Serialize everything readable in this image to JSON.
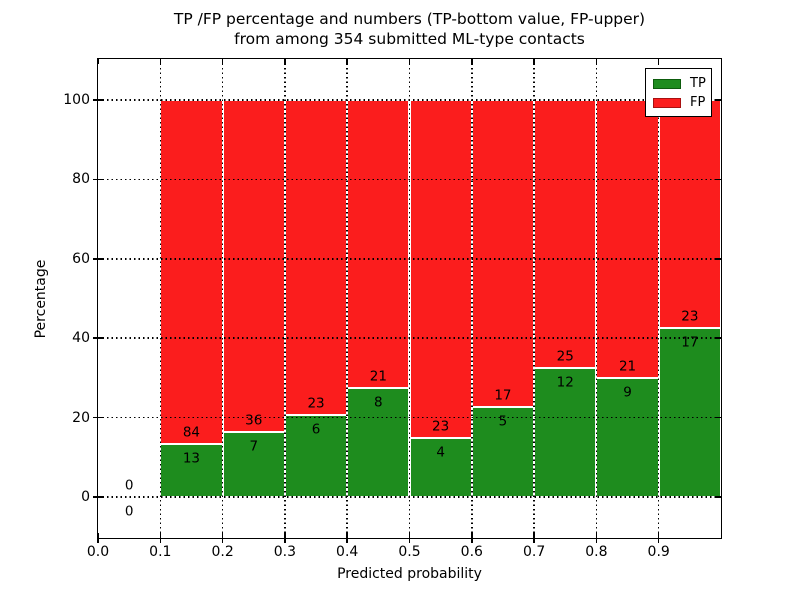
{
  "figure": {
    "title_line1": "TP /FP percentage and numbers (TP-bottom value, FP-upper)",
    "title_line2": "from among 354 submitted ML-type contacts"
  },
  "chart_data": {
    "type": "bar",
    "stacked": true,
    "title": "TP /FP percentage and numbers (TP-bottom value, FP-upper) from among 354 submitted ML-type contacts",
    "xlabel": "Predicted probability",
    "ylabel": "Percentage",
    "total_contacts": 354,
    "xlim": [
      0.0,
      1.0
    ],
    "ylim": [
      -10.3,
      110.3
    ],
    "x_tick_values": [
      0.0,
      0.1,
      0.2,
      0.3,
      0.4,
      0.5,
      0.6,
      0.7,
      0.8,
      0.9
    ],
    "x_tick_labels": [
      "0.0",
      "0.1",
      "0.2",
      "0.3",
      "0.4",
      "0.5",
      "0.6",
      "0.7",
      "0.8",
      "0.9"
    ],
    "y_ticks": [
      0,
      20,
      40,
      60,
      80,
      100
    ],
    "grid": {
      "style": "dotted",
      "color": "#000000",
      "horizontal_at": [
        0,
        20,
        40,
        60,
        80,
        100
      ],
      "vertical_at": [
        0.1,
        0.2,
        0.3,
        0.4,
        0.5,
        0.6,
        0.7,
        0.8,
        0.9
      ]
    },
    "colors": {
      "tp": "#1e8c1e",
      "fp": "#fb1d1d",
      "bar_edge": "#ffffff",
      "tp_swatch_edge": "#0d5c0d",
      "fp_swatch_edge": "#a81111"
    },
    "legend": [
      {
        "label": "TP",
        "series": "tp"
      },
      {
        "label": "FP",
        "series": "fp"
      }
    ],
    "legend_position": "upper right",
    "bins": [
      {
        "x_start": 0.0,
        "x_end": 0.1,
        "tp": 0,
        "fp": 0
      },
      {
        "x_start": 0.1,
        "x_end": 0.2,
        "tp": 13,
        "fp": 84
      },
      {
        "x_start": 0.2,
        "x_end": 0.3,
        "tp": 7,
        "fp": 36
      },
      {
        "x_start": 0.3,
        "x_end": 0.4,
        "tp": 6,
        "fp": 23
      },
      {
        "x_start": 0.4,
        "x_end": 0.5,
        "tp": 8,
        "fp": 21
      },
      {
        "x_start": 0.5,
        "x_end": 0.6,
        "tp": 4,
        "fp": 23
      },
      {
        "x_start": 0.6,
        "x_end": 0.7,
        "tp": 5,
        "fp": 17
      },
      {
        "x_start": 0.7,
        "x_end": 0.8,
        "tp": 12,
        "fp": 25
      },
      {
        "x_start": 0.8,
        "x_end": 0.9,
        "tp": 9,
        "fp": 21
      },
      {
        "x_start": 0.9,
        "x_end": 1.0,
        "tp": 17,
        "fp": 23
      }
    ]
  }
}
